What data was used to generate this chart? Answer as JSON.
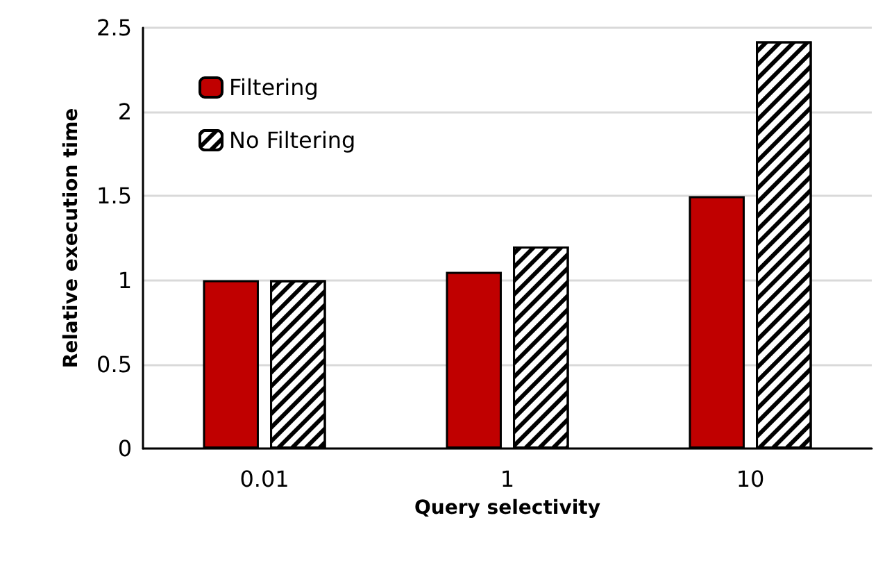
{
  "chart_data": {
    "type": "bar",
    "xlabel": "Query selectivity",
    "ylabel": "Relative execution time",
    "categories": [
      "0.01",
      "1",
      "10"
    ],
    "series": [
      {
        "name": "Filtering",
        "color": "#c00000",
        "values": [
          1.0,
          1.05,
          1.5
        ]
      },
      {
        "name": "No Filtering",
        "color": "#ffffff",
        "values": [
          1.0,
          1.2,
          2.42
        ]
      }
    ],
    "ylim": [
      0,
      2.5
    ],
    "yticks": [
      0,
      0.5,
      1,
      1.5,
      2,
      2.5
    ],
    "grid": "y",
    "legend": "top left"
  }
}
